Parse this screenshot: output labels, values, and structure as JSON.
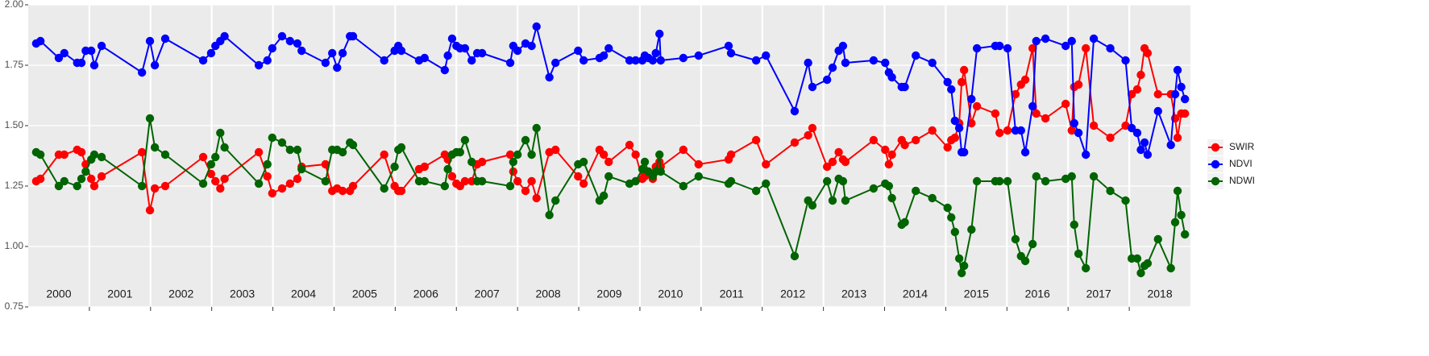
{
  "chart_data": {
    "type": "line",
    "x": [
      2000.13,
      2000.2,
      2000.5,
      2000.59,
      2000.8,
      2000.87,
      2000.94,
      2001.03,
      2001.08,
      2001.2,
      2001.86,
      2001.99,
      2002.07,
      2002.24,
      2002.86,
      2002.99,
      2003.06,
      2003.14,
      2003.21,
      2003.77,
      2003.91,
      2003.99,
      2004.15,
      2004.28,
      2004.4,
      2004.47,
      2004.86,
      2004.97,
      2005.05,
      2005.14,
      2005.26,
      2005.31,
      2005.82,
      2005.99,
      2006.05,
      2006.1,
      2006.39,
      2006.48,
      2006.81,
      2006.86,
      2006.93,
      2007.0,
      2007.06,
      2007.14,
      2007.25,
      2007.34,
      2007.42,
      2007.88,
      2007.93,
      2008.0,
      2008.13,
      2008.23,
      2008.31,
      2008.52,
      2008.62,
      2008.99,
      2009.08,
      2009.34,
      2009.41,
      2009.49,
      2009.83,
      2009.93,
      2010.04,
      2010.08,
      2010.14,
      2010.21,
      2010.26,
      2010.32,
      2010.34,
      2010.71,
      2010.96,
      2011.45,
      2011.49,
      2011.9,
      2012.06,
      2012.53,
      2012.75,
      2012.82,
      2013.06,
      2013.15,
      2013.25,
      2013.32,
      2013.36,
      2013.82,
      2014.01,
      2014.07,
      2014.12,
      2014.28,
      2014.33,
      2014.51,
      2014.78,
      2015.03,
      2015.09,
      2015.15,
      2015.22,
      2015.26,
      2015.3,
      2015.42,
      2015.51,
      2015.81,
      2015.88,
      2016.01,
      2016.14,
      2016.23,
      2016.3,
      2016.42,
      2016.48,
      2016.63,
      2016.96,
      2017.06,
      2017.1,
      2017.17,
      2017.29,
      2017.42,
      2017.69,
      2017.94,
      2018.04,
      2018.13,
      2018.19,
      2018.25,
      2018.3,
      2018.47,
      2018.68,
      2018.75,
      2018.79,
      2018.85,
      2018.91
    ],
    "series": [
      {
        "name": "SWIR",
        "color": "#ff0000",
        "values": [
          1.27,
          1.28,
          1.38,
          1.38,
          1.4,
          1.39,
          1.34,
          1.28,
          1.25,
          1.29,
          1.39,
          1.15,
          1.24,
          1.25,
          1.37,
          1.3,
          1.27,
          1.24,
          1.28,
          1.39,
          1.29,
          1.22,
          1.24,
          1.26,
          1.28,
          1.33,
          1.34,
          1.23,
          1.24,
          1.23,
          1.23,
          1.25,
          1.38,
          1.25,
          1.23,
          1.23,
          1.32,
          1.33,
          1.38,
          1.36,
          1.29,
          1.26,
          1.25,
          1.27,
          1.27,
          1.34,
          1.35,
          1.38,
          1.31,
          1.27,
          1.23,
          1.27,
          1.2,
          1.39,
          1.4,
          1.29,
          1.26,
          1.4,
          1.38,
          1.35,
          1.42,
          1.38,
          1.28,
          1.29,
          1.3,
          1.28,
          1.33,
          1.35,
          1.33,
          1.4,
          1.34,
          1.36,
          1.38,
          1.44,
          1.34,
          1.43,
          1.46,
          1.49,
          1.33,
          1.35,
          1.39,
          1.36,
          1.35,
          1.44,
          1.4,
          1.34,
          1.38,
          1.44,
          1.42,
          1.44,
          1.48,
          1.41,
          1.44,
          1.45,
          1.51,
          1.68,
          1.73,
          1.51,
          1.58,
          1.55,
          1.47,
          1.48,
          1.63,
          1.67,
          1.69,
          1.82,
          1.55,
          1.53,
          1.59,
          1.48,
          1.66,
          1.67,
          1.82,
          1.5,
          1.45,
          1.5,
          1.63,
          1.65,
          1.71,
          1.82,
          1.8,
          1.63,
          1.63,
          1.53,
          1.45,
          1.55,
          1.55
        ]
      },
      {
        "name": "NDVI",
        "color": "#0000ff",
        "values": [
          1.84,
          1.85,
          1.78,
          1.8,
          1.76,
          1.76,
          1.81,
          1.81,
          1.75,
          1.83,
          1.72,
          1.85,
          1.75,
          1.86,
          1.77,
          1.8,
          1.83,
          1.85,
          1.87,
          1.75,
          1.77,
          1.82,
          1.87,
          1.85,
          1.84,
          1.81,
          1.76,
          1.8,
          1.74,
          1.8,
          1.87,
          1.87,
          1.77,
          1.81,
          1.83,
          1.81,
          1.77,
          1.78,
          1.73,
          1.79,
          1.86,
          1.83,
          1.82,
          1.82,
          1.77,
          1.8,
          1.8,
          1.76,
          1.83,
          1.81,
          1.84,
          1.83,
          1.91,
          1.7,
          1.76,
          1.81,
          1.77,
          1.78,
          1.79,
          1.82,
          1.77,
          1.77,
          1.77,
          1.79,
          1.78,
          1.77,
          1.8,
          1.88,
          1.77,
          1.78,
          1.79,
          1.83,
          1.8,
          1.77,
          1.79,
          1.56,
          1.76,
          1.66,
          1.69,
          1.74,
          1.81,
          1.83,
          1.76,
          1.77,
          1.76,
          1.72,
          1.7,
          1.66,
          1.66,
          1.79,
          1.76,
          1.68,
          1.65,
          1.52,
          1.49,
          1.39,
          1.39,
          1.61,
          1.82,
          1.83,
          1.83,
          1.82,
          1.48,
          1.48,
          1.39,
          1.58,
          1.85,
          1.86,
          1.83,
          1.85,
          1.51,
          1.47,
          1.38,
          1.86,
          1.82,
          1.77,
          1.49,
          1.47,
          1.4,
          1.43,
          1.38,
          1.56,
          1.42,
          1.63,
          1.73,
          1.66,
          1.61
        ]
      },
      {
        "name": "NDWI",
        "color": "#006400",
        "values": [
          1.39,
          1.38,
          1.25,
          1.27,
          1.25,
          1.28,
          1.31,
          1.36,
          1.38,
          1.37,
          1.25,
          1.53,
          1.41,
          1.38,
          1.26,
          1.34,
          1.37,
          1.47,
          1.41,
          1.26,
          1.34,
          1.45,
          1.43,
          1.4,
          1.4,
          1.32,
          1.27,
          1.4,
          1.4,
          1.39,
          1.43,
          1.42,
          1.24,
          1.33,
          1.4,
          1.41,
          1.27,
          1.27,
          1.25,
          1.32,
          1.38,
          1.39,
          1.39,
          1.44,
          1.35,
          1.27,
          1.27,
          1.25,
          1.35,
          1.38,
          1.44,
          1.38,
          1.49,
          1.13,
          1.19,
          1.34,
          1.35,
          1.19,
          1.21,
          1.29,
          1.26,
          1.27,
          1.32,
          1.35,
          1.31,
          1.29,
          1.31,
          1.38,
          1.31,
          1.25,
          1.29,
          1.26,
          1.27,
          1.23,
          1.26,
          0.96,
          1.19,
          1.17,
          1.27,
          1.19,
          1.28,
          1.27,
          1.19,
          1.24,
          1.26,
          1.25,
          1.2,
          1.09,
          1.1,
          1.23,
          1.2,
          1.16,
          1.12,
          1.06,
          0.95,
          0.89,
          0.92,
          1.07,
          1.27,
          1.27,
          1.27,
          1.27,
          1.03,
          0.96,
          0.94,
          1.01,
          1.29,
          1.27,
          1.28,
          1.29,
          1.09,
          0.97,
          0.91,
          1.29,
          1.23,
          1.19,
          0.95,
          0.95,
          0.89,
          0.92,
          0.93,
          1.03,
          0.91,
          1.1,
          1.23,
          1.13,
          1.05
        ]
      }
    ],
    "xlim": [
      2000,
      2019
    ],
    "xticks": [
      {
        "value": 2000.5,
        "label": "2000"
      },
      {
        "value": 2001.5,
        "label": "2001"
      },
      {
        "value": 2002.5,
        "label": "2002"
      },
      {
        "value": 2003.5,
        "label": "2003"
      },
      {
        "value": 2004.5,
        "label": "2004"
      },
      {
        "value": 2005.5,
        "label": "2005"
      },
      {
        "value": 2006.5,
        "label": "2006"
      },
      {
        "value": 2007.5,
        "label": "2007"
      },
      {
        "value": 2008.5,
        "label": "2008"
      },
      {
        "value": 2009.5,
        "label": "2009"
      },
      {
        "value": 2010.5,
        "label": "2010"
      },
      {
        "value": 2011.5,
        "label": "2011"
      },
      {
        "value": 2012.5,
        "label": "2012"
      },
      {
        "value": 2013.5,
        "label": "2013"
      },
      {
        "value": 2014.5,
        "label": "2014"
      },
      {
        "value": 2015.5,
        "label": "2015"
      },
      {
        "value": 2016.5,
        "label": "2016"
      },
      {
        "value": 2017.5,
        "label": "2017"
      },
      {
        "value": 2018.5,
        "label": "2018"
      }
    ],
    "ylim": [
      0.75,
      2.0
    ],
    "yticks": [
      0.75,
      {
        "value": 1.0,
        "label": "1.00"
      },
      1.25,
      {
        "value": 1.5,
        "label": "1.50"
      },
      1.75,
      {
        "value": 2.0,
        "label": "2.00"
      }
    ],
    "grid": true,
    "legend": "right"
  }
}
